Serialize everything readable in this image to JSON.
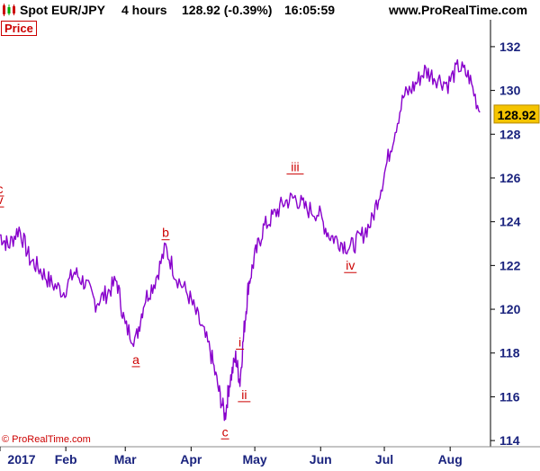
{
  "header": {
    "instrument": "Spot EUR/JPY",
    "timeframe": "4 hours",
    "quote": "128.92 (-0.39%)",
    "time": "16:05:59",
    "website": "www.ProRealTime.com"
  },
  "price_label": "Price",
  "copyright": "© ProRealTime.com",
  "colors": {
    "line": "#8800cc",
    "wave_label": "#cc0000",
    "price_box": "#f5c400",
    "axis_text": "#1a237e",
    "separator": "#000000"
  },
  "chart_data": {
    "type": "line",
    "ylim": [
      113.8,
      132.9
    ],
    "y_ticks": [
      "132",
      "130",
      "128",
      "126",
      "124",
      "122",
      "120",
      "118",
      "116",
      "114"
    ],
    "y_tick_values": [
      132,
      130,
      128,
      126,
      124,
      122,
      120,
      118,
      116,
      114
    ],
    "x_tick_labels": [
      "2017",
      "Feb",
      "Mar",
      "Apr",
      "May",
      "Jun",
      "Jul",
      "Aug"
    ],
    "last_price_label": "128.92",
    "last_price": 128.92,
    "series": [
      {
        "x": [
          "2017-01-01",
          "2017-01-05",
          "2017-01-10",
          "2017-01-15",
          "2017-01-20",
          "2017-01-25",
          "2017-01-31",
          "2017-02-05",
          "2017-02-10",
          "2017-02-15",
          "2017-02-20",
          "2017-02-25",
          "2017-03-01",
          "2017-03-06",
          "2017-03-10",
          "2017-03-15",
          "2017-03-20",
          "2017-03-25",
          "2017-03-31",
          "2017-04-05",
          "2017-04-10",
          "2017-04-14",
          "2017-04-17",
          "2017-04-19",
          "2017-04-22",
          "2017-04-24",
          "2017-04-26",
          "2017-04-28",
          "2017-05-01",
          "2017-05-05",
          "2017-05-10",
          "2017-05-15",
          "2017-05-20",
          "2017-05-25",
          "2017-05-31",
          "2017-06-05",
          "2017-06-10",
          "2017-06-15",
          "2017-06-20",
          "2017-06-25",
          "2017-06-30",
          "2017-07-05",
          "2017-07-10",
          "2017-07-15",
          "2017-07-20",
          "2017-07-25",
          "2017-07-31",
          "2017-08-05",
          "2017-08-10",
          "2017-08-15"
        ],
        "y": [
          123.4,
          122.9,
          123.7,
          122.3,
          121.8,
          121.2,
          120.8,
          121.7,
          121.2,
          120.3,
          120.7,
          121.3,
          119.2,
          118.6,
          120.4,
          121.3,
          122.8,
          121.5,
          120.6,
          119.4,
          118.1,
          116.3,
          115.1,
          116.6,
          117.8,
          116.7,
          119.1,
          121.1,
          122.4,
          123.7,
          124.3,
          124.9,
          125.1,
          124.6,
          124.4,
          123.4,
          123.1,
          122.8,
          123.3,
          124.0,
          125.8,
          127.8,
          129.7,
          130.2,
          130.9,
          130.6,
          130.3,
          131.1,
          130.6,
          129.0
        ]
      }
    ],
    "annotations": [
      {
        "text": "c",
        "x": "2017-01-01",
        "y": 125.3
      },
      {
        "text": "v",
        "x": "2017-01-01",
        "y": 124.8
      },
      {
        "text": "a",
        "x": "2017-03-06",
        "y": 117.5
      },
      {
        "text": "b",
        "x": "2017-03-20",
        "y": 123.3
      },
      {
        "text": "c",
        "x": "2017-04-17",
        "y": 114.2
      },
      {
        "text": "i",
        "x": "2017-04-24",
        "y": 118.3
      },
      {
        "text": "ii",
        "x": "2017-04-26",
        "y": 115.9
      },
      {
        "text": "iii",
        "x": "2017-05-20",
        "y": 126.3
      },
      {
        "text": "iv",
        "x": "2017-06-15",
        "y": 121.8
      }
    ]
  }
}
